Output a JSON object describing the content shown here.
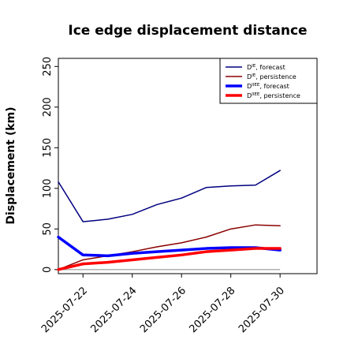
{
  "chart_data": {
    "type": "line",
    "title": "Ice edge displacement distance",
    "xlabel": "",
    "ylabel": "Displacement (km)",
    "ylim": [
      -5,
      260
    ],
    "yticks": [
      0,
      50,
      100,
      150,
      200,
      250
    ],
    "xlim": [
      0,
      10.5
    ],
    "xticks": [
      {
        "x": 1,
        "label": "2025-07-22",
        "color": "#228b22"
      },
      {
        "x": 3,
        "label": "2025-07-24",
        "color": "#000000"
      },
      {
        "x": 5,
        "label": "2025-07-26",
        "color": "#000000"
      },
      {
        "x": 7,
        "label": "2025-07-28",
        "color": "#000000"
      },
      {
        "x": 9,
        "label": "2025-07-30",
        "color": "#000000"
      }
    ],
    "x": [
      0,
      1,
      2,
      3,
      4,
      5,
      6,
      7,
      8,
      9
    ],
    "legend_position": "top-right",
    "baseline": 0,
    "series": [
      {
        "name_main": "D",
        "name_sup": "IE",
        "name_rest": ", forecast",
        "color": "#000080",
        "width": 1.5,
        "values": [
          108,
          59,
          62,
          68,
          80,
          88,
          101,
          103,
          104,
          122
        ]
      },
      {
        "name_main": "D",
        "name_sup": "IE",
        "name_rest": ", persistence",
        "color": "#8b0000",
        "width": 1.5,
        "values": [
          0,
          12,
          17,
          22,
          28,
          33,
          40,
          50,
          55,
          54
        ]
      },
      {
        "name_main": "D",
        "name_sup": "IIEE",
        "name_rest": ", forecast",
        "color": "#0000ff",
        "width": 3.5,
        "values": [
          40,
          18,
          17,
          20,
          22,
          24,
          26,
          27,
          27,
          24
        ]
      },
      {
        "name_main": "D",
        "name_sup": "IIEE",
        "name_rest": ", persistence",
        "color": "#ff0000",
        "width": 3.5,
        "values": [
          0,
          7,
          9,
          12,
          15,
          18,
          22,
          24,
          26,
          26
        ]
      }
    ]
  }
}
